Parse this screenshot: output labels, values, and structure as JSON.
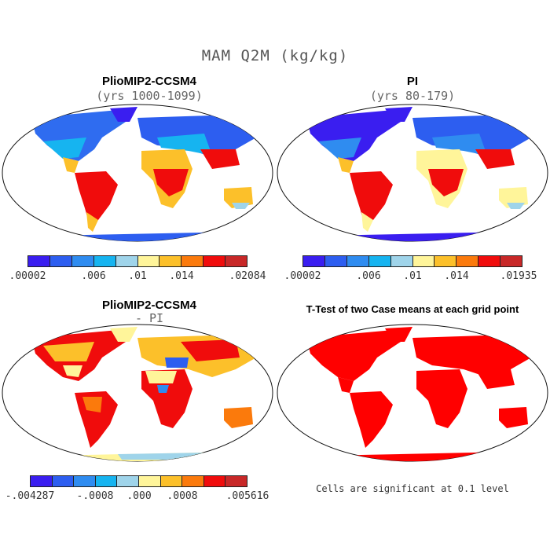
{
  "title": "MAM Q2M (kg/kg)",
  "panels": [
    {
      "title": "PlioMIP2-CCSM4",
      "subtitle": "(yrs 1000-1099)"
    },
    {
      "title": "PI",
      "subtitle": "(yrs 80-179)"
    },
    {
      "title": "PlioMIP2-CCSM4",
      "subtitle": "- PI"
    },
    {
      "title": "T-Test of two Case means at each grid point",
      "subtitle": ""
    }
  ],
  "colorbars": {
    "seq": [
      "#3a1ef0",
      "#2d5ef0",
      "#2f8cf0",
      "#16b4f0",
      "#9fd4ea",
      "#fff59a",
      "#fcc02a",
      "#fb7a0c",
      "#f00c0c",
      "#c82828"
    ],
    "seq_labels_1": [
      ".00002",
      ".006",
      ".01",
      ".014",
      ".02084"
    ],
    "seq_labels_2": [
      ".00002",
      ".006",
      ".01",
      ".014",
      ".01935"
    ],
    "diff_labels": [
      "-.004287",
      "-.0008",
      ".000",
      ".0008",
      ".005616"
    ]
  },
  "note": "Cells are significant at 0.1 level",
  "colors": {
    "ocean": "#ffffff",
    "coast": "#111111",
    "significant": "#ff0000"
  }
}
